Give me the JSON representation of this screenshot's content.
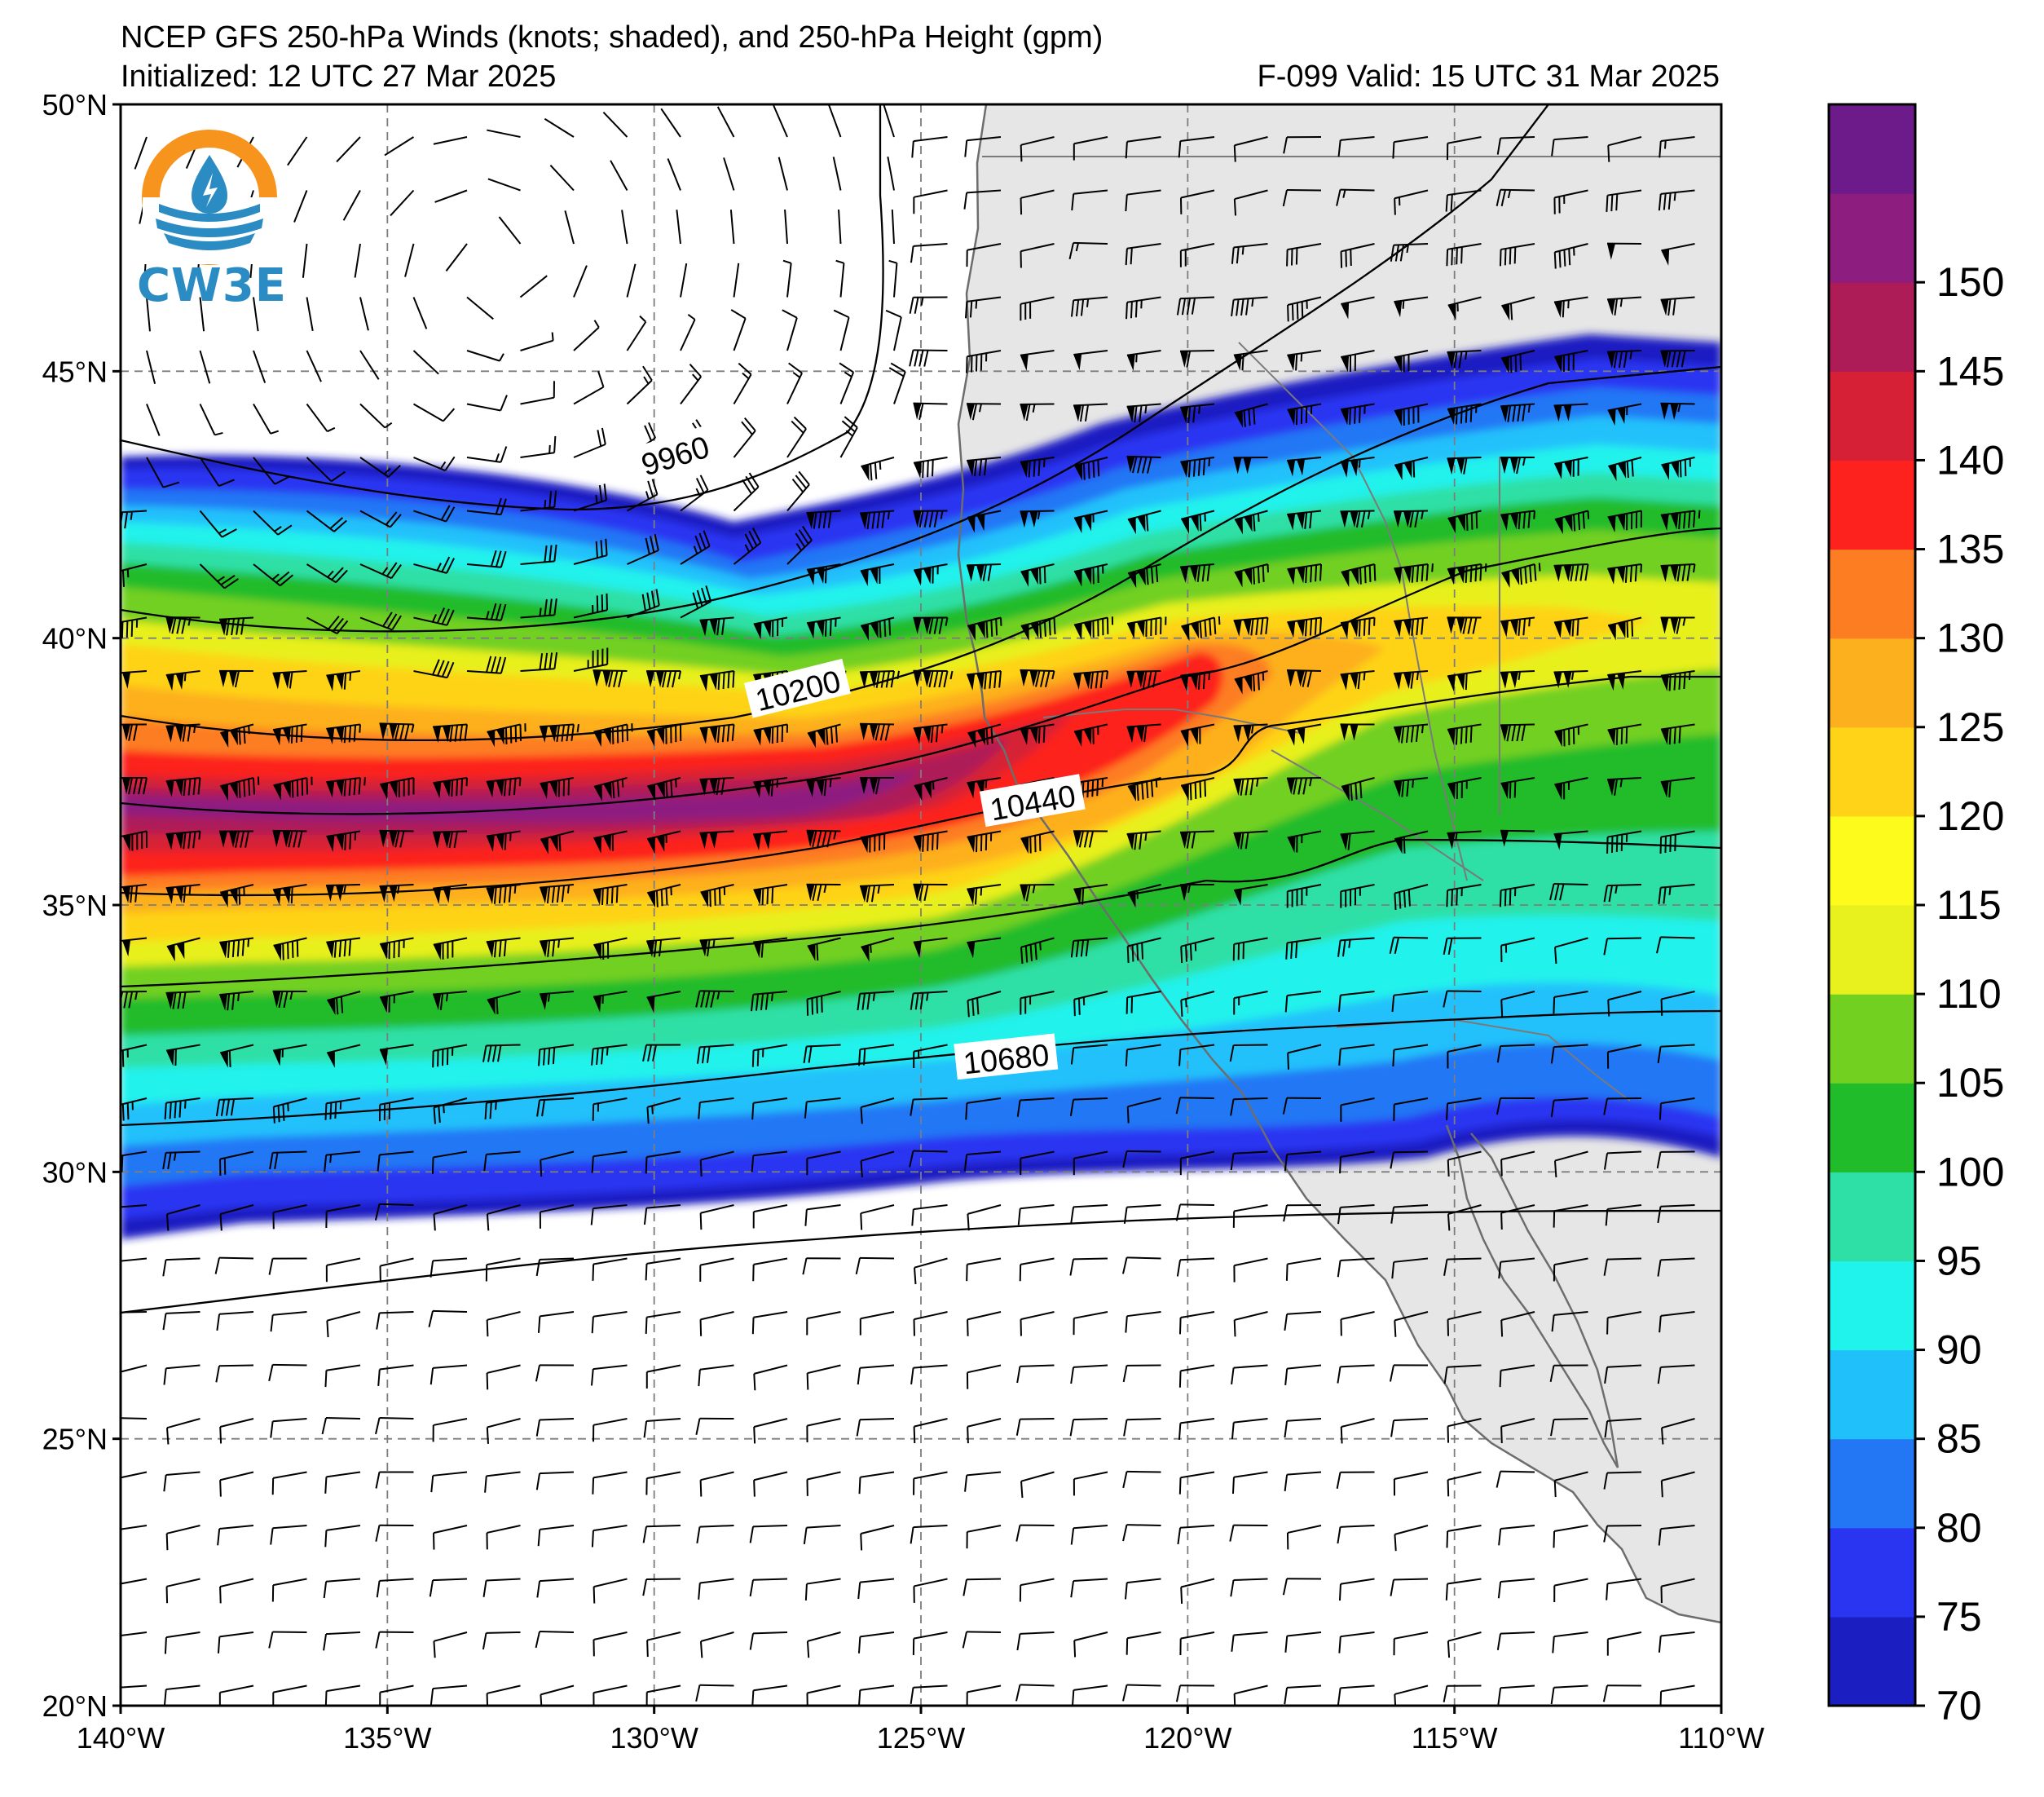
{
  "header": {
    "title": "NCEP GFS 250-hPa Winds (knots; shaded), and 250-hPa Height (gpm)",
    "initialized": "Initialized: 12 UTC 27 Mar 2025",
    "valid": "F-099  Valid: 15 UTC 31 Mar 2025"
  },
  "logo": {
    "text": "CW3E",
    "color_orange": "#f7941d",
    "color_blue": "#2b8cc4"
  },
  "map": {
    "lon_range": [
      -140,
      -110
    ],
    "lat_range": [
      20,
      50
    ],
    "lat_labels": [
      {
        "lat": 50,
        "label": "50°N"
      },
      {
        "lat": 45,
        "label": "45°N"
      },
      {
        "lat": 40,
        "label": "40°N"
      },
      {
        "lat": 35,
        "label": "35°N"
      },
      {
        "lat": 30,
        "label": "30°N"
      },
      {
        "lat": 25,
        "label": "25°N"
      },
      {
        "lat": 20,
        "label": "20°N"
      }
    ],
    "lon_labels": [
      {
        "lon": -140,
        "label": "140°W"
      },
      {
        "lon": -135,
        "label": "135°W"
      },
      {
        "lon": -130,
        "label": "130°W"
      },
      {
        "lon": -125,
        "label": "125°W"
      },
      {
        "lon": -120,
        "label": "120°W"
      },
      {
        "lon": -115,
        "label": "115°W"
      },
      {
        "lon": -110,
        "label": "110°W"
      }
    ],
    "land_color": "#e6e6e6",
    "contour_labels": [
      {
        "text": "9960",
        "lon": -129.6,
        "lat": 43.4,
        "angle": -17
      },
      {
        "text": "10200",
        "lon": -127.3,
        "lat": 39.0,
        "angle": -14
      },
      {
        "text": "10440",
        "lon": -122.9,
        "lat": 36.9,
        "angle": -10
      },
      {
        "text": "10680",
        "lon": -123.4,
        "lat": 32.1,
        "angle": -6
      }
    ]
  },
  "colorbar": {
    "ticks": [
      "70",
      "75",
      "80",
      "85",
      "90",
      "95",
      "100",
      "105",
      "110",
      "115",
      "120",
      "125",
      "130",
      "135",
      "140",
      "145",
      "150"
    ],
    "colors": [
      "#1b1fc2",
      "#2a35f2",
      "#2377f5",
      "#20c1fb",
      "#20f2ec",
      "#2ee0a6",
      "#20bc2a",
      "#72d020",
      "#e8f01e",
      "#fdfb1c",
      "#fed318",
      "#fdb01d",
      "#fd7e22",
      "#fd221e",
      "#d62035",
      "#ae1c58",
      "#8e1d80",
      "#6d1a8b"
    ]
  },
  "chart_data": {
    "type": "heatmap",
    "title": "NCEP GFS 250-hPa Winds (knots; shaded), and 250-hPa Height (gpm)",
    "variable": "250-hPa wind speed (knots) with 250-hPa height contours (gpm)",
    "x_range": [
      -140,
      -110
    ],
    "y_range": [
      20,
      50
    ],
    "color_levels": [
      70,
      75,
      80,
      85,
      90,
      95,
      100,
      105,
      110,
      115,
      120,
      125,
      130,
      135,
      140,
      145,
      150
    ],
    "height_contours_gpm": [
      9960,
      10200,
      10440,
      10680
    ]
  }
}
